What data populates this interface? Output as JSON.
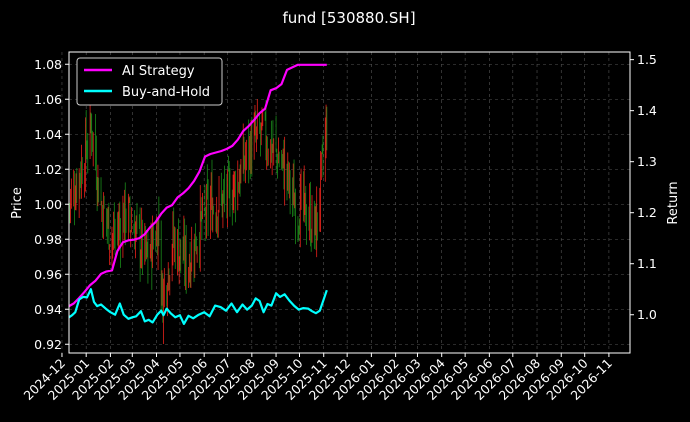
{
  "chart_data": {
    "type": "line",
    "title": "fund [530880.SH]",
    "ylabel_left": "Price",
    "ylabel_right": "Return",
    "ylim_left": [
      0.915,
      1.087
    ],
    "ylim_right": [
      0.925,
      1.515
    ],
    "xlim": [
      "2024-12-10",
      "2026-11-28"
    ],
    "grid": true,
    "legend_position": "top-left",
    "x_ticks": [
      "2024-12",
      "2025-01",
      "2025-02",
      "2025-03",
      "2025-04",
      "2025-05",
      "2025-06",
      "2025-07",
      "2025-08",
      "2025-09",
      "2025-10",
      "2025-11",
      "2025-12",
      "2026-01",
      "2026-02",
      "2026-03",
      "2026-04",
      "2026-05",
      "2026-06",
      "2026-07",
      "2026-08",
      "2026-09",
      "2026-10",
      "2026-11"
    ],
    "y_ticks_left": [
      "0.92",
      "0.94",
      "0.96",
      "0.98",
      "1.00",
      "1.02",
      "1.04",
      "1.06",
      "1.08"
    ],
    "y_ticks_right": [
      "1.0",
      "1.1",
      "1.2",
      "1.3",
      "1.4",
      "1.5"
    ],
    "colors": {
      "background": "#000000",
      "up_candle": "#e8221b",
      "down_candle": "#1a8a1a",
      "ai_strategy": "#ff00ff",
      "buy_and_hold": "#00ffff",
      "grid": "#555555"
    },
    "series": [
      {
        "name": "AI Strategy",
        "axis": "right",
        "x": [
          "2024-12-10",
          "2024-12-16",
          "2024-12-23",
          "2024-12-30",
          "2025-01-06",
          "2025-01-13",
          "2025-01-20",
          "2025-01-27",
          "2025-02-03",
          "2025-02-10",
          "2025-02-17",
          "2025-02-24",
          "2025-03-03",
          "2025-03-10",
          "2025-03-17",
          "2025-03-24",
          "2025-03-31",
          "2025-04-07",
          "2025-04-14",
          "2025-04-21",
          "2025-04-28",
          "2025-05-05",
          "2025-05-12",
          "2025-05-19",
          "2025-05-26",
          "2025-06-02",
          "2025-06-09",
          "2025-06-16",
          "2025-06-23",
          "2025-06-30",
          "2025-07-07",
          "2025-07-14",
          "2025-07-21",
          "2025-07-28",
          "2025-08-04",
          "2025-08-11",
          "2025-08-18",
          "2025-08-25",
          "2025-09-01",
          "2025-09-08",
          "2025-09-15",
          "2025-09-22",
          "2025-09-29",
          "2025-10-06",
          "2025-10-13",
          "2025-10-20",
          "2025-10-27",
          "2025-11-05"
        ],
        "values": [
          1.017,
          1.022,
          1.033,
          1.045,
          1.058,
          1.067,
          1.08,
          1.085,
          1.087,
          1.125,
          1.142,
          1.146,
          1.147,
          1.15,
          1.158,
          1.172,
          1.182,
          1.198,
          1.21,
          1.215,
          1.23,
          1.238,
          1.248,
          1.262,
          1.281,
          1.31,
          1.315,
          1.318,
          1.321,
          1.325,
          1.331,
          1.343,
          1.36,
          1.37,
          1.382,
          1.395,
          1.404,
          1.44,
          1.444,
          1.452,
          1.48,
          1.485,
          1.49,
          1.49,
          1.49,
          1.49,
          1.49,
          1.49
        ]
      },
      {
        "name": "Buy-and-Hold",
        "axis": "right",
        "x": [
          "2024-12-10",
          "2024-12-14",
          "2024-12-18",
          "2024-12-23",
          "2024-12-28",
          "2025-01-02",
          "2025-01-07",
          "2025-01-11",
          "2025-01-15",
          "2025-01-20",
          "2025-01-26",
          "2025-02-01",
          "2025-02-07",
          "2025-02-13",
          "2025-02-18",
          "2025-02-24",
          "2025-03-01",
          "2025-03-06",
          "2025-03-12",
          "2025-03-17",
          "2025-03-22",
          "2025-03-27",
          "2025-04-02",
          "2025-04-07",
          "2025-04-10",
          "2025-04-14",
          "2025-04-19",
          "2025-04-25",
          "2025-05-01",
          "2025-05-06",
          "2025-05-12",
          "2025-05-18",
          "2025-05-25",
          "2025-06-01",
          "2025-06-08",
          "2025-06-15",
          "2025-06-22",
          "2025-06-29",
          "2025-07-06",
          "2025-07-13",
          "2025-07-20",
          "2025-07-26",
          "2025-08-01",
          "2025-08-06",
          "2025-08-11",
          "2025-08-16",
          "2025-08-21",
          "2025-08-26",
          "2025-09-01",
          "2025-09-06",
          "2025-09-12",
          "2025-09-18",
          "2025-09-24",
          "2025-09-30",
          "2025-10-06",
          "2025-10-12",
          "2025-10-17",
          "2025-10-22",
          "2025-10-27",
          "2025-11-01",
          "2025-11-05"
        ],
        "values": [
          0.995,
          0.999,
          1.005,
          1.03,
          1.035,
          1.034,
          1.05,
          1.025,
          1.017,
          1.02,
          1.012,
          1.005,
          1.0,
          1.022,
          1.0,
          0.992,
          0.995,
          0.997,
          1.007,
          0.987,
          0.99,
          0.985,
          1.0,
          1.008,
          0.999,
          1.012,
          1.003,
          0.995,
          0.999,
          0.982,
          0.998,
          0.993,
          1.0,
          1.005,
          0.997,
          1.018,
          1.015,
          1.008,
          1.022,
          1.005,
          1.02,
          1.01,
          1.018,
          1.032,
          1.027,
          1.005,
          1.021,
          1.018,
          1.042,
          1.035,
          1.04,
          1.028,
          1.018,
          1.01,
          1.013,
          1.012,
          1.007,
          1.003,
          1.008,
          1.03,
          1.048
        ]
      }
    ]
  }
}
